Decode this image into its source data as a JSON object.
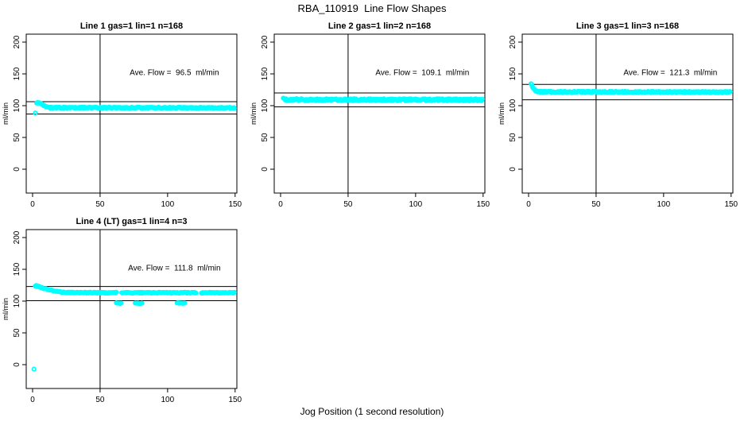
{
  "figure": {
    "main_title": "RBA_110919  Line Flow Shapes",
    "x_axis_label": "Jog Position (1 second resolution)",
    "background_color": "#FFFFFF",
    "point_color": "#00FFFF",
    "axis_color": "#000000",
    "text_color": "#000000"
  },
  "chart_data": [
    {
      "type": "scatter",
      "title": "Line 1 gas=1 lin=1 n=168",
      "line": 1,
      "gas": 1,
      "lin": 1,
      "n": 168,
      "annotation": "Ave. Flow =  96.5  ml/min",
      "ave_flow_ml_min": 96.5,
      "ylabel": "ml/min",
      "x_ticks": [
        0,
        50,
        100,
        150
      ],
      "y_ticks": [
        0,
        50,
        100,
        150,
        200
      ],
      "xlim": [
        -4.7,
        151.3
      ],
      "ylim": [
        -37.5,
        212.5
      ],
      "ref_hlines": [
        106.2,
        86.9
      ],
      "ref_vline": 50,
      "annotation_pos": {
        "x": 105,
        "y": 148
      },
      "series": [
        {
          "x0": 2,
          "x1": 2,
          "y0": 88.5,
          "y1": 88.5,
          "step": 1,
          "jitter": 0
        },
        {
          "x0": 3,
          "x1": 6,
          "y0": 104.5,
          "y1": 104,
          "step": 0.5,
          "jitter": 0.6
        },
        {
          "x0": 6.5,
          "x1": 13,
          "y0": 103,
          "y1": 97.2,
          "step": 0.5,
          "jitter": 0.5,
          "decay": true
        },
        {
          "x0": 13,
          "x1": 149.5,
          "y0": 96.9,
          "y1": 96.4,
          "step": 0.5,
          "jitter": 1.0
        }
      ]
    },
    {
      "type": "scatter",
      "title": "Line 2 gas=1 lin=2 n=168",
      "line": 2,
      "gas": 1,
      "lin": 2,
      "n": 168,
      "annotation": "Ave. Flow =  109.1  ml/min",
      "ave_flow_ml_min": 109.1,
      "ylabel": "ml/min",
      "x_ticks": [
        0,
        50,
        100,
        150
      ],
      "y_ticks": [
        0,
        50,
        100,
        150,
        200
      ],
      "xlim": [
        -4.7,
        151.3
      ],
      "ylim": [
        -37.5,
        212.5
      ],
      "ref_hlines": [
        120.0,
        98.2
      ],
      "ref_vline": 50,
      "annotation_pos": {
        "x": 105,
        "y": 148
      },
      "series": [
        {
          "x0": 2,
          "x1": 3.5,
          "y0": 111.4,
          "y1": 110.3,
          "step": 0.5,
          "jitter": 0.5
        },
        {
          "x0": 3.5,
          "x1": 149.5,
          "y0": 109.5,
          "y1": 109.2,
          "step": 0.5,
          "jitter": 1.6
        }
      ]
    },
    {
      "type": "scatter",
      "title": "Line 3 gas=1 lin=3 n=168",
      "line": 3,
      "gas": 1,
      "lin": 3,
      "n": 168,
      "annotation": "Ave. Flow =  121.3  ml/min",
      "ave_flow_ml_min": 121.3,
      "ylabel": "ml/min",
      "x_ticks": [
        0,
        50,
        100,
        150
      ],
      "y_ticks": [
        0,
        50,
        100,
        150,
        200
      ],
      "xlim": [
        -4.7,
        151.3
      ],
      "ylim": [
        -37.5,
        212.5
      ],
      "ref_hlines": [
        133.4,
        109.2
      ],
      "ref_vline": 50,
      "annotation_pos": {
        "x": 105,
        "y": 148
      },
      "series": [
        {
          "x0": 1.8,
          "x1": 3,
          "y0": 134.5,
          "y1": 130,
          "step": 0.4,
          "jitter": 1.2
        },
        {
          "x0": 3.2,
          "x1": 7,
          "y0": 128.5,
          "y1": 122,
          "step": 0.5,
          "jitter": 0.8,
          "decay": true
        },
        {
          "x0": 7,
          "x1": 149.5,
          "y0": 121.7,
          "y1": 121.3,
          "step": 0.5,
          "jitter": 1.1
        }
      ]
    },
    {
      "type": "scatter",
      "title": "Line 4 (LT) gas=1 lin=4 n=3",
      "line": 4,
      "gas": 1,
      "lin": 4,
      "n": 3,
      "annotation": "Ave. Flow =  111.8  ml/min",
      "ave_flow_ml_min": 111.8,
      "ylabel": "ml/min",
      "x_ticks": [
        0,
        50,
        100,
        150
      ],
      "y_ticks": [
        0,
        50,
        100,
        150,
        200
      ],
      "xlim": [
        -4.7,
        151.3
      ],
      "ylim": [
        -37.5,
        212.5
      ],
      "ref_hlines": [
        123.0,
        100.6
      ],
      "ref_vline": 50,
      "annotation_pos": {
        "x": 105,
        "y": 148
      },
      "series": [
        {
          "x0": 1,
          "x1": 1,
          "y0": -7,
          "y1": -7,
          "step": 1,
          "jitter": 0
        },
        {
          "x0": 2,
          "x1": 5,
          "y0": 124.3,
          "y1": 122.6,
          "step": 0.4,
          "jitter": 0.9
        },
        {
          "x0": 5,
          "x1": 28,
          "y0": 122.5,
          "y1": 113.5,
          "step": 0.5,
          "jitter": 0.7,
          "decay": true
        },
        {
          "x0": 28,
          "x1": 62,
          "y0": 113.4,
          "y1": 113.2,
          "step": 0.5,
          "jitter": 0.8
        },
        {
          "x0": 66,
          "x1": 121,
          "y0": 113.3,
          "y1": 113.1,
          "step": 0.5,
          "jitter": 0.8
        },
        {
          "x0": 125,
          "x1": 149.5,
          "y0": 113.3,
          "y1": 113.1,
          "step": 0.5,
          "jitter": 0.8
        },
        {
          "x0": 62,
          "x1": 66,
          "y0": 97,
          "y1": 96.5,
          "step": 0.7,
          "jitter": 0.5
        },
        {
          "x0": 76,
          "x1": 81,
          "y0": 97,
          "y1": 96.5,
          "step": 0.7,
          "jitter": 0.5
        },
        {
          "x0": 107,
          "x1": 113,
          "y0": 97,
          "y1": 96.5,
          "step": 0.7,
          "jitter": 0.5
        }
      ]
    }
  ]
}
